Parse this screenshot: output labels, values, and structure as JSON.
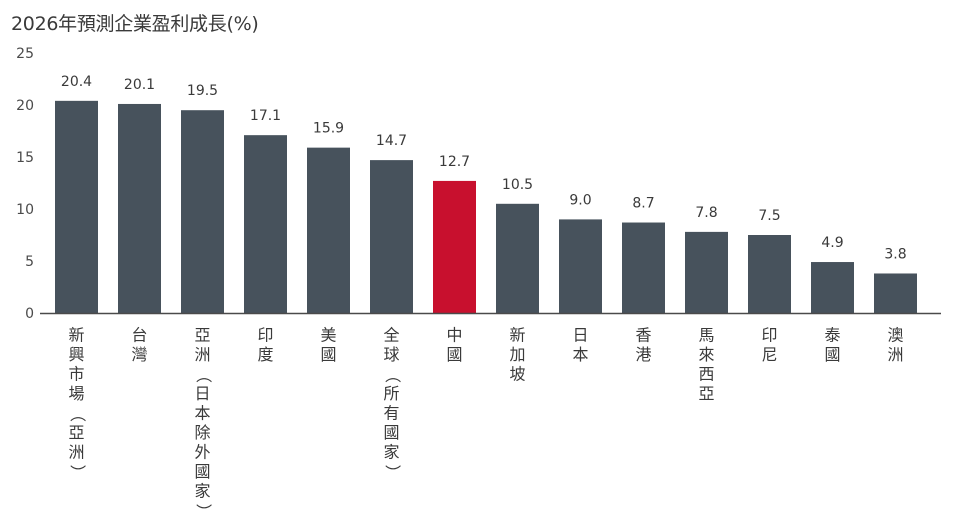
{
  "chart_data": {
    "type": "bar",
    "title": "2026年預測企業盈利成長(%)",
    "xlabel": "",
    "ylabel": "",
    "ylim": [
      0,
      25
    ],
    "yticks": [
      0,
      5,
      10,
      15,
      20,
      25
    ],
    "grid": false,
    "categories": [
      "新興市場（亞洲）",
      "台灣",
      "亞洲（日本除外國家）",
      "印度",
      "美國",
      "全球（所有國家）",
      "中國",
      "新加坡",
      "日本",
      "香港",
      "馬來西亞",
      "印尼",
      "泰國",
      "澳洲"
    ],
    "values": [
      20.4,
      20.1,
      19.5,
      17.1,
      15.9,
      14.7,
      12.7,
      10.5,
      9.0,
      8.7,
      7.8,
      7.5,
      4.9,
      3.8
    ],
    "value_labels": [
      "20.4",
      "20.1",
      "19.5",
      "17.1",
      "15.9",
      "14.7",
      "12.7",
      "10.5",
      "9.0",
      "8.7",
      "7.8",
      "7.5",
      "4.9",
      "3.8"
    ],
    "highlight_index": 6,
    "colors": {
      "bar": "#47525c",
      "highlight": "#c8102e",
      "axis": "#4a4a4a"
    }
  }
}
